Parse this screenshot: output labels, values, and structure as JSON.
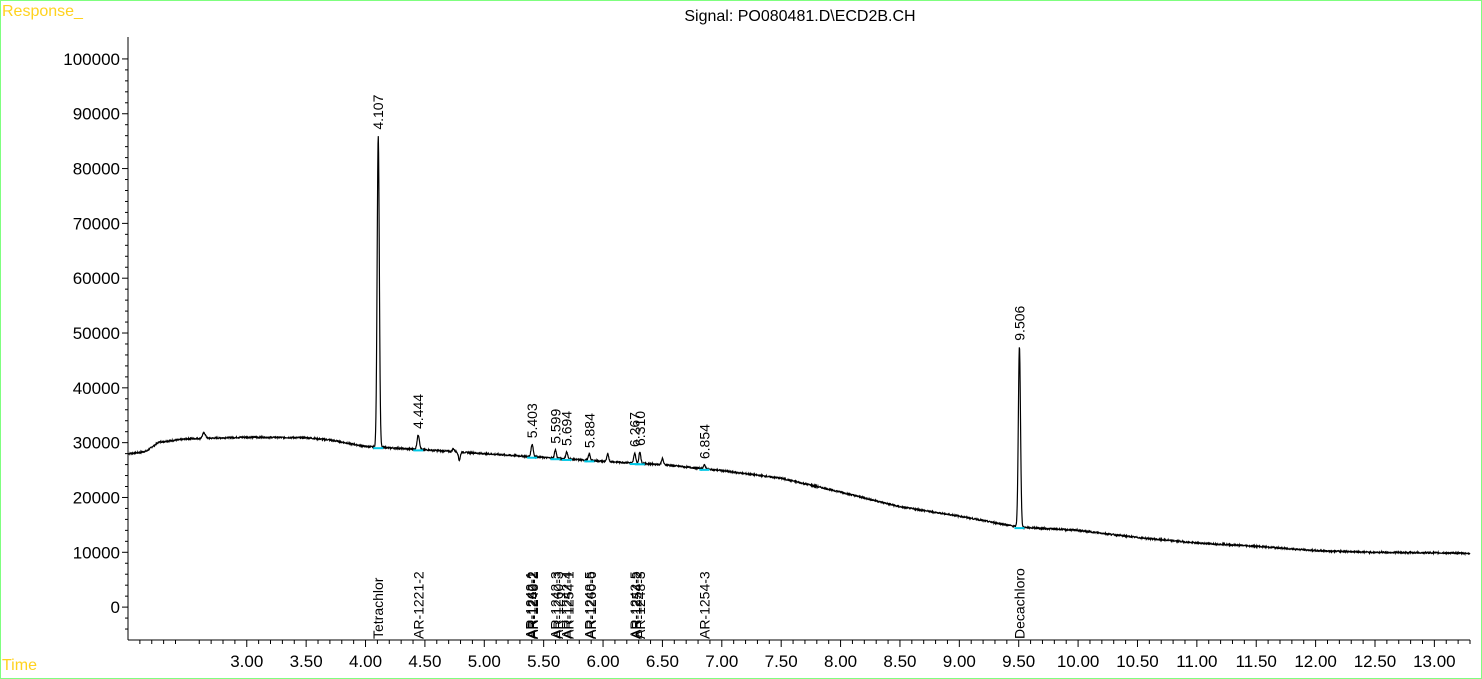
{
  "window": {
    "response_label": "Response_",
    "time_label": "Time",
    "signal_title": "Signal: PO080481.D\\ECD2B.CH"
  },
  "colors": {
    "frame": "#7fff7f",
    "corner_labels": "#ffd21f",
    "trace": "#000000",
    "baseline_marks": "#00c8e6"
  },
  "chart_data": {
    "type": "line",
    "title": "Signal: PO080481.D\\ECD2B.CH",
    "xlabel": "Time",
    "ylabel": "Response_",
    "xlim": [
      2.0,
      13.3
    ],
    "ylim": [
      -6000,
      104000
    ],
    "grid": false,
    "y_ticks": [
      "0",
      "10000",
      "20000",
      "30000",
      "40000",
      "50000",
      "60000",
      "70000",
      "80000",
      "90000",
      "100000"
    ],
    "x_ticks": [
      "3.00",
      "3.50",
      "4.00",
      "4.50",
      "5.00",
      "5.50",
      "6.00",
      "6.50",
      "7.00",
      "7.50",
      "8.00",
      "8.50",
      "9.00",
      "9.50",
      "10.00",
      "10.50",
      "11.00",
      "11.50",
      "12.00",
      "12.50",
      "13.00"
    ],
    "baseline": [
      [
        2.0,
        28000
      ],
      [
        2.1,
        28200
      ],
      [
        2.16,
        28500
      ],
      [
        2.2,
        29200
      ],
      [
        2.26,
        30100
      ],
      [
        2.5,
        30700
      ],
      [
        3.0,
        31000
      ],
      [
        3.5,
        30900
      ],
      [
        3.7,
        30500
      ],
      [
        4.0,
        29300
      ],
      [
        4.5,
        28700
      ],
      [
        5.0,
        28000
      ],
      [
        5.5,
        27300
      ],
      [
        6.0,
        26600
      ],
      [
        6.5,
        26000
      ],
      [
        7.0,
        24900
      ],
      [
        7.5,
        23500
      ],
      [
        8.0,
        21000
      ],
      [
        8.5,
        18300
      ],
      [
        9.0,
        16600
      ],
      [
        9.5,
        14600
      ],
      [
        10.0,
        14000
      ],
      [
        10.5,
        12700
      ],
      [
        11.0,
        11700
      ],
      [
        11.5,
        11100
      ],
      [
        12.0,
        10300
      ],
      [
        12.5,
        10000
      ],
      [
        13.0,
        9900
      ],
      [
        13.3,
        9800
      ]
    ],
    "peaks": [
      {
        "rt": 2.64,
        "height": 31800,
        "width": 0.012
      },
      {
        "rt": 4.107,
        "height": 86000,
        "width": 0.009
      },
      {
        "rt": 4.444,
        "height": 31400,
        "width": 0.01
      },
      {
        "rt": 4.74,
        "height": 28900,
        "width": 0.008
      },
      {
        "rt": 4.79,
        "height": 26800,
        "width": 0.008
      },
      {
        "rt": 5.403,
        "height": 29700,
        "width": 0.009
      },
      {
        "rt": 5.599,
        "height": 28700,
        "width": 0.008
      },
      {
        "rt": 5.694,
        "height": 28300,
        "width": 0.008
      },
      {
        "rt": 5.884,
        "height": 27900,
        "width": 0.008
      },
      {
        "rt": 6.04,
        "height": 27900,
        "width": 0.008
      },
      {
        "rt": 6.267,
        "height": 28100,
        "width": 0.008
      },
      {
        "rt": 6.31,
        "height": 28300,
        "width": 0.008
      },
      {
        "rt": 6.5,
        "height": 27100,
        "width": 0.008
      },
      {
        "rt": 6.854,
        "height": 25900,
        "width": 0.009
      },
      {
        "rt": 9.506,
        "height": 47500,
        "width": 0.009
      }
    ],
    "peak_labels": [
      {
        "rt": 4.107,
        "label": "4.107",
        "y": 86000
      },
      {
        "rt": 4.444,
        "label": "4.444",
        "y": 31400
      },
      {
        "rt": 5.403,
        "label": "5.403",
        "y": 29700
      },
      {
        "rt": 5.599,
        "label": "5.599",
        "y": 28700
      },
      {
        "rt": 5.694,
        "label": "5.694",
        "y": 28300
      },
      {
        "rt": 5.884,
        "label": "5.884",
        "y": 27900
      },
      {
        "rt": 6.267,
        "label": "6.267",
        "y": 28100
      },
      {
        "rt": 6.31,
        "label": "6.310",
        "y": 28300
      },
      {
        "rt": 6.854,
        "label": "6.854",
        "y": 25900
      },
      {
        "rt": 9.506,
        "label": "9.506",
        "y": 47500
      }
    ],
    "compound_labels": [
      {
        "rt": 4.107,
        "label": "Tetrachlor"
      },
      {
        "rt": 4.444,
        "label": "AR-1221-2"
      },
      {
        "rt": 5.39,
        "label": "AR-1242-1"
      },
      {
        "rt": 5.403,
        "label": "AR-1260-2"
      },
      {
        "rt": 5.41,
        "label": "AR-1248-2"
      },
      {
        "rt": 5.599,
        "label": "AR-1242-3"
      },
      {
        "rt": 5.62,
        "label": "AR-1260-3"
      },
      {
        "rt": 5.694,
        "label": "AR-1242-4"
      },
      {
        "rt": 5.71,
        "label": "AR-1254-1"
      },
      {
        "rt": 5.884,
        "label": "AR-1248-5"
      },
      {
        "rt": 5.9,
        "label": "AR-1260-6"
      },
      {
        "rt": 6.267,
        "label": "AR-1242-5"
      },
      {
        "rt": 6.28,
        "label": "AR-1254-2"
      },
      {
        "rt": 6.31,
        "label": "AR-1248-3"
      },
      {
        "rt": 6.854,
        "label": "AR-1254-3"
      },
      {
        "rt": 9.506,
        "label": "Decachloro"
      }
    ]
  }
}
